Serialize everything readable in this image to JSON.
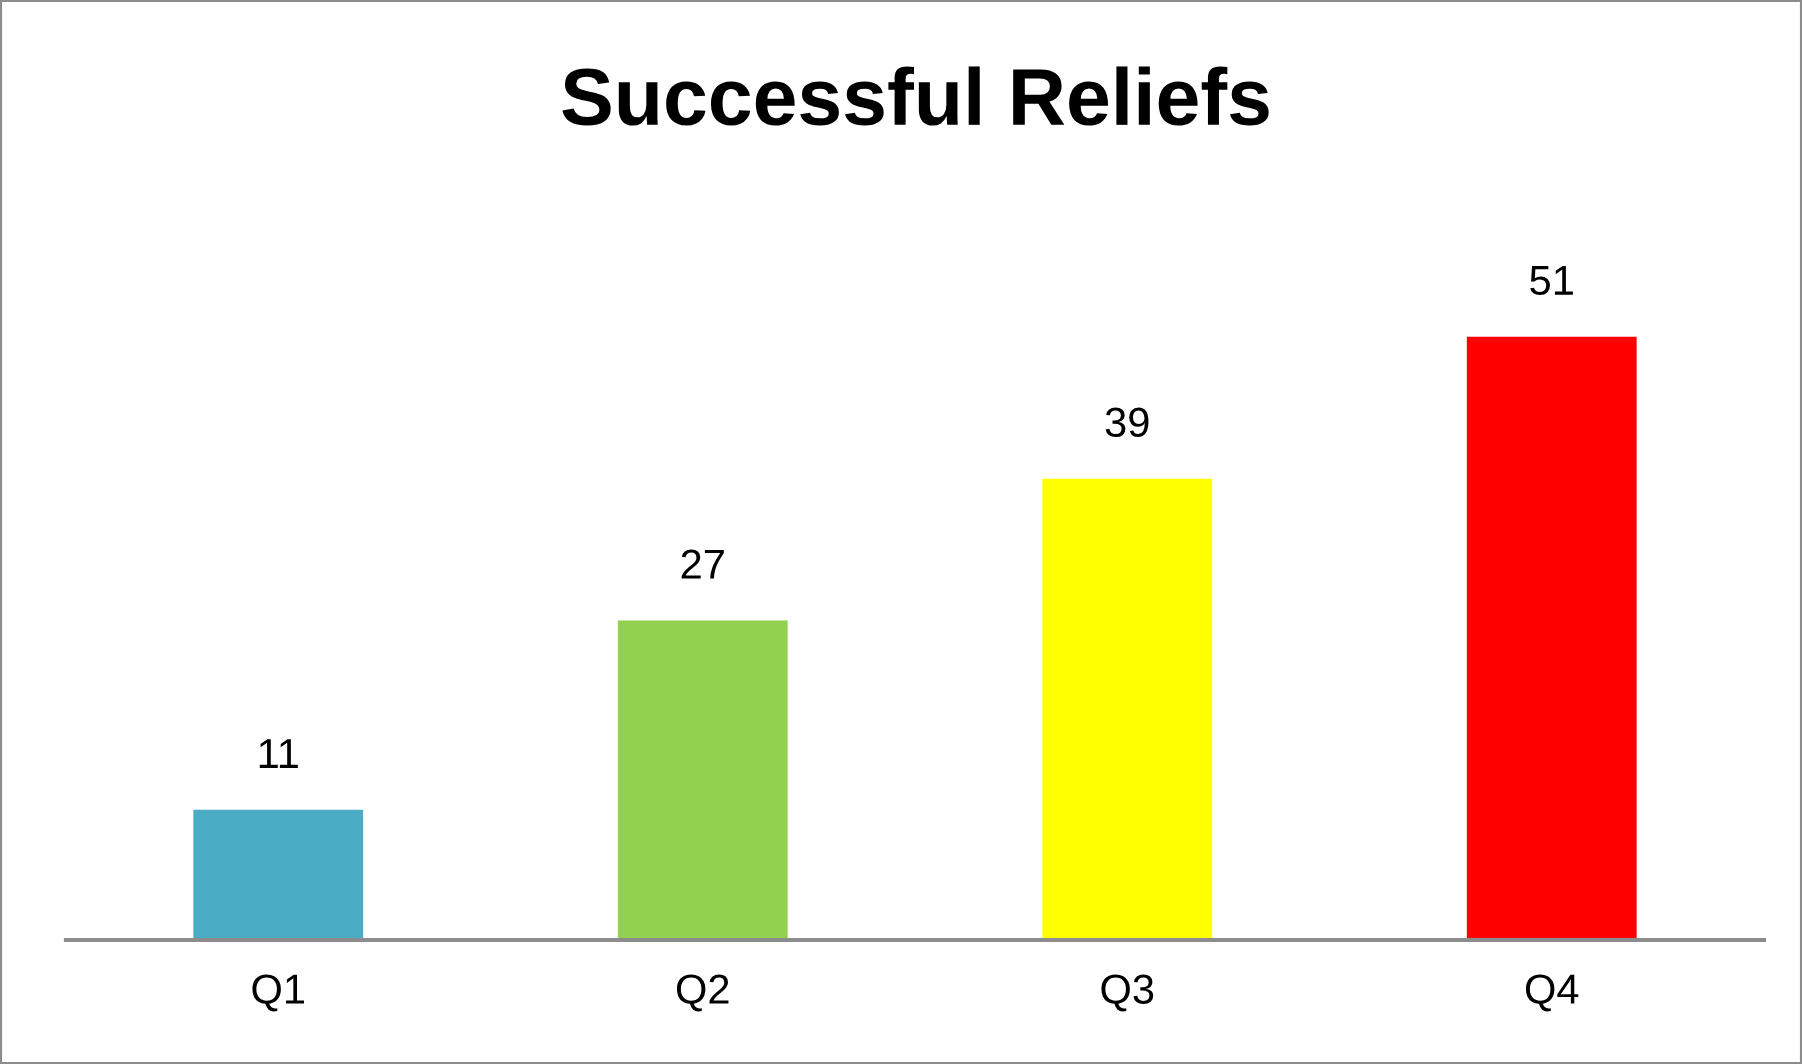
{
  "chart_data": {
    "type": "bar",
    "title": "Successful Reliefs",
    "categories": [
      "Q1",
      "Q2",
      "Q3",
      "Q4"
    ],
    "values": [
      11,
      27,
      39,
      51
    ],
    "colors": [
      "#4bacc6",
      "#92d050",
      "#ffff00",
      "#ff0000"
    ],
    "data_labels": true,
    "grid": false,
    "legend": false
  }
}
